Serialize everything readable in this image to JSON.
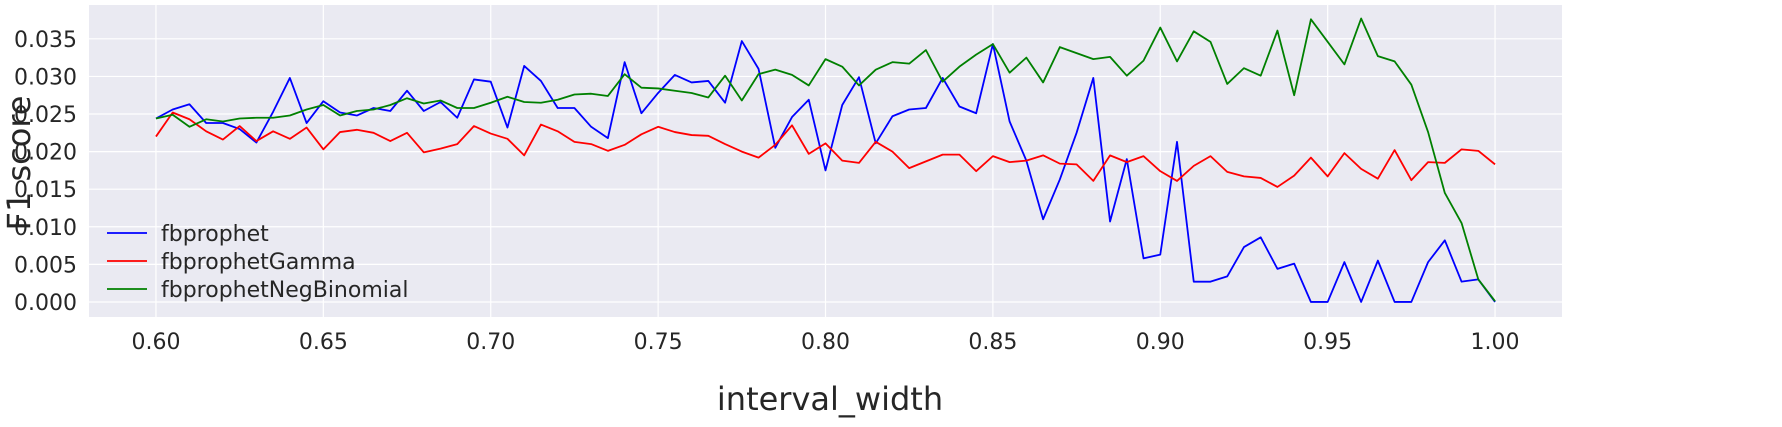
{
  "chart_data": {
    "type": "line",
    "title": "",
    "xlabel": "interval_width",
    "ylabel": "F1 score",
    "xlim": [
      0.58,
      1.02
    ],
    "ylim": [
      -0.002,
      0.0395
    ],
    "xticks": [
      0.6,
      0.65,
      0.7,
      0.75,
      0.8,
      0.85,
      0.9,
      0.95,
      1.0
    ],
    "xtick_labels": [
      "0.60",
      "0.65",
      "0.70",
      "0.75",
      "0.80",
      "0.85",
      "0.90",
      "0.95",
      "1.00"
    ],
    "yticks": [
      0.0,
      0.005,
      0.01,
      0.015,
      0.02,
      0.025,
      0.03,
      0.035
    ],
    "ytick_labels": [
      "0.000",
      "0.005",
      "0.010",
      "0.015",
      "0.020",
      "0.025",
      "0.030",
      "0.035"
    ],
    "grid": true,
    "legend_position": "lower-left",
    "x": [
      0.6,
      0.605,
      0.61,
      0.615,
      0.62,
      0.625,
      0.63,
      0.635,
      0.64,
      0.645,
      0.65,
      0.655,
      0.66,
      0.665,
      0.67,
      0.675,
      0.68,
      0.685,
      0.69,
      0.695,
      0.7,
      0.705,
      0.71,
      0.715,
      0.72,
      0.725,
      0.73,
      0.735,
      0.74,
      0.745,
      0.75,
      0.755,
      0.76,
      0.765,
      0.77,
      0.775,
      0.78,
      0.785,
      0.79,
      0.795,
      0.8,
      0.805,
      0.81,
      0.815,
      0.82,
      0.825,
      0.83,
      0.835,
      0.84,
      0.845,
      0.85,
      0.855,
      0.86,
      0.865,
      0.87,
      0.875,
      0.88,
      0.885,
      0.89,
      0.895,
      0.9,
      0.905,
      0.91,
      0.915,
      0.92,
      0.925,
      0.93,
      0.935,
      0.94,
      0.945,
      0.95,
      0.955,
      0.96,
      0.965,
      0.97,
      0.975,
      0.98,
      0.985,
      0.99,
      0.995,
      1.0
    ],
    "series": [
      {
        "name": "fbprophet",
        "color": "#0000ff",
        "values": [
          0.0244,
          0.0256,
          0.0263,
          0.0238,
          0.0238,
          0.023,
          0.0212,
          0.0253,
          0.0298,
          0.0238,
          0.0267,
          0.0252,
          0.0248,
          0.0258,
          0.0254,
          0.0281,
          0.0254,
          0.0266,
          0.0245,
          0.0296,
          0.0293,
          0.0232,
          0.0314,
          0.0294,
          0.0258,
          0.0258,
          0.0233,
          0.0218,
          0.0319,
          0.0251,
          0.0278,
          0.0302,
          0.0292,
          0.0294,
          0.0265,
          0.0347,
          0.031,
          0.0205,
          0.0246,
          0.0269,
          0.0175,
          0.0262,
          0.0299,
          0.0211,
          0.0247,
          0.0256,
          0.0258,
          0.0298,
          0.026,
          0.0251,
          0.0343,
          0.024,
          0.0188,
          0.011,
          0.0163,
          0.0225,
          0.0298,
          0.0107,
          0.019,
          0.0058,
          0.0063,
          0.0213,
          0.0027,
          0.0027,
          0.0034,
          0.0073,
          0.0086,
          0.0044,
          0.0051,
          0.0,
          0.0,
          0.0053,
          0.0,
          0.0055,
          0.0,
          0.0,
          0.0053,
          0.0082,
          0.0027,
          0.003,
          0.0
        ]
      },
      {
        "name": "fbprophetGamma",
        "color": "#ff0000",
        "values": [
          0.022,
          0.0252,
          0.0243,
          0.0227,
          0.0216,
          0.0234,
          0.0214,
          0.0227,
          0.0217,
          0.0232,
          0.0203,
          0.0226,
          0.0229,
          0.0225,
          0.0214,
          0.0225,
          0.0199,
          0.0204,
          0.021,
          0.0234,
          0.0224,
          0.0217,
          0.0195,
          0.0236,
          0.0227,
          0.0213,
          0.021,
          0.0201,
          0.0209,
          0.0223,
          0.0233,
          0.0226,
          0.0222,
          0.0221,
          0.021,
          0.02,
          0.0192,
          0.0209,
          0.0235,
          0.0197,
          0.0211,
          0.0188,
          0.0185,
          0.0213,
          0.02,
          0.0178,
          0.0187,
          0.0196,
          0.0196,
          0.0174,
          0.0194,
          0.0186,
          0.0188,
          0.0195,
          0.0184,
          0.0183,
          0.0161,
          0.0195,
          0.0186,
          0.0194,
          0.0174,
          0.0161,
          0.0181,
          0.0194,
          0.0173,
          0.0167,
          0.0165,
          0.0153,
          0.0168,
          0.0192,
          0.0167,
          0.0198,
          0.0177,
          0.0164,
          0.0202,
          0.0162,
          0.0186,
          0.0185,
          0.0203,
          0.0201,
          0.0183
        ]
      },
      {
        "name": "fbprophetNegBinomial",
        "color": "#008000",
        "values": [
          0.0244,
          0.0249,
          0.0233,
          0.0243,
          0.024,
          0.0244,
          0.0245,
          0.0245,
          0.0248,
          0.0256,
          0.0262,
          0.0248,
          0.0254,
          0.0256,
          0.0262,
          0.0271,
          0.0264,
          0.0268,
          0.0258,
          0.0258,
          0.0265,
          0.0273,
          0.0266,
          0.0265,
          0.0269,
          0.0276,
          0.0277,
          0.0274,
          0.0303,
          0.0285,
          0.0284,
          0.0281,
          0.0278,
          0.0272,
          0.0301,
          0.0268,
          0.0303,
          0.0309,
          0.0302,
          0.0288,
          0.0323,
          0.0313,
          0.0288,
          0.0309,
          0.0319,
          0.0317,
          0.0335,
          0.0293,
          0.0313,
          0.0329,
          0.0343,
          0.0305,
          0.0325,
          0.0292,
          0.0339,
          0.0331,
          0.0323,
          0.0326,
          0.0301,
          0.0321,
          0.0365,
          0.032,
          0.036,
          0.0346,
          0.029,
          0.0311,
          0.0301,
          0.0361,
          0.0275,
          0.0376,
          0.0346,
          0.0316,
          0.0377,
          0.0327,
          0.032,
          0.0289,
          0.0226,
          0.0145,
          0.0105,
          0.003,
          0.0001
        ]
      }
    ]
  }
}
